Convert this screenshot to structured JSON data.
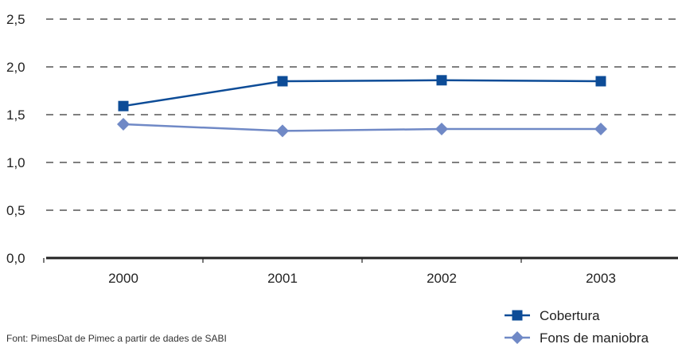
{
  "chart_data": {
    "type": "line",
    "categories": [
      "2000",
      "2001",
      "2002",
      "2003"
    ],
    "series": [
      {
        "name": "Cobertura",
        "values": [
          1.59,
          1.85,
          1.86,
          1.85
        ],
        "color": "#0d4c97",
        "marker": "square"
      },
      {
        "name": "Fons de maniobra",
        "values": [
          1.4,
          1.33,
          1.35,
          1.35
        ],
        "color": "#7089c6",
        "marker": "diamond"
      }
    ],
    "yticks": [
      "0,0",
      "0,5",
      "1,0",
      "1,5",
      "2,0",
      "2,5"
    ],
    "ylim": [
      0,
      2.5
    ],
    "grid": true,
    "legend_position": "bottom-right",
    "title": "",
    "xlabel": "",
    "ylabel": "",
    "source_note": "Font: PimesDat de Pimec a partir de dades de SABI"
  }
}
